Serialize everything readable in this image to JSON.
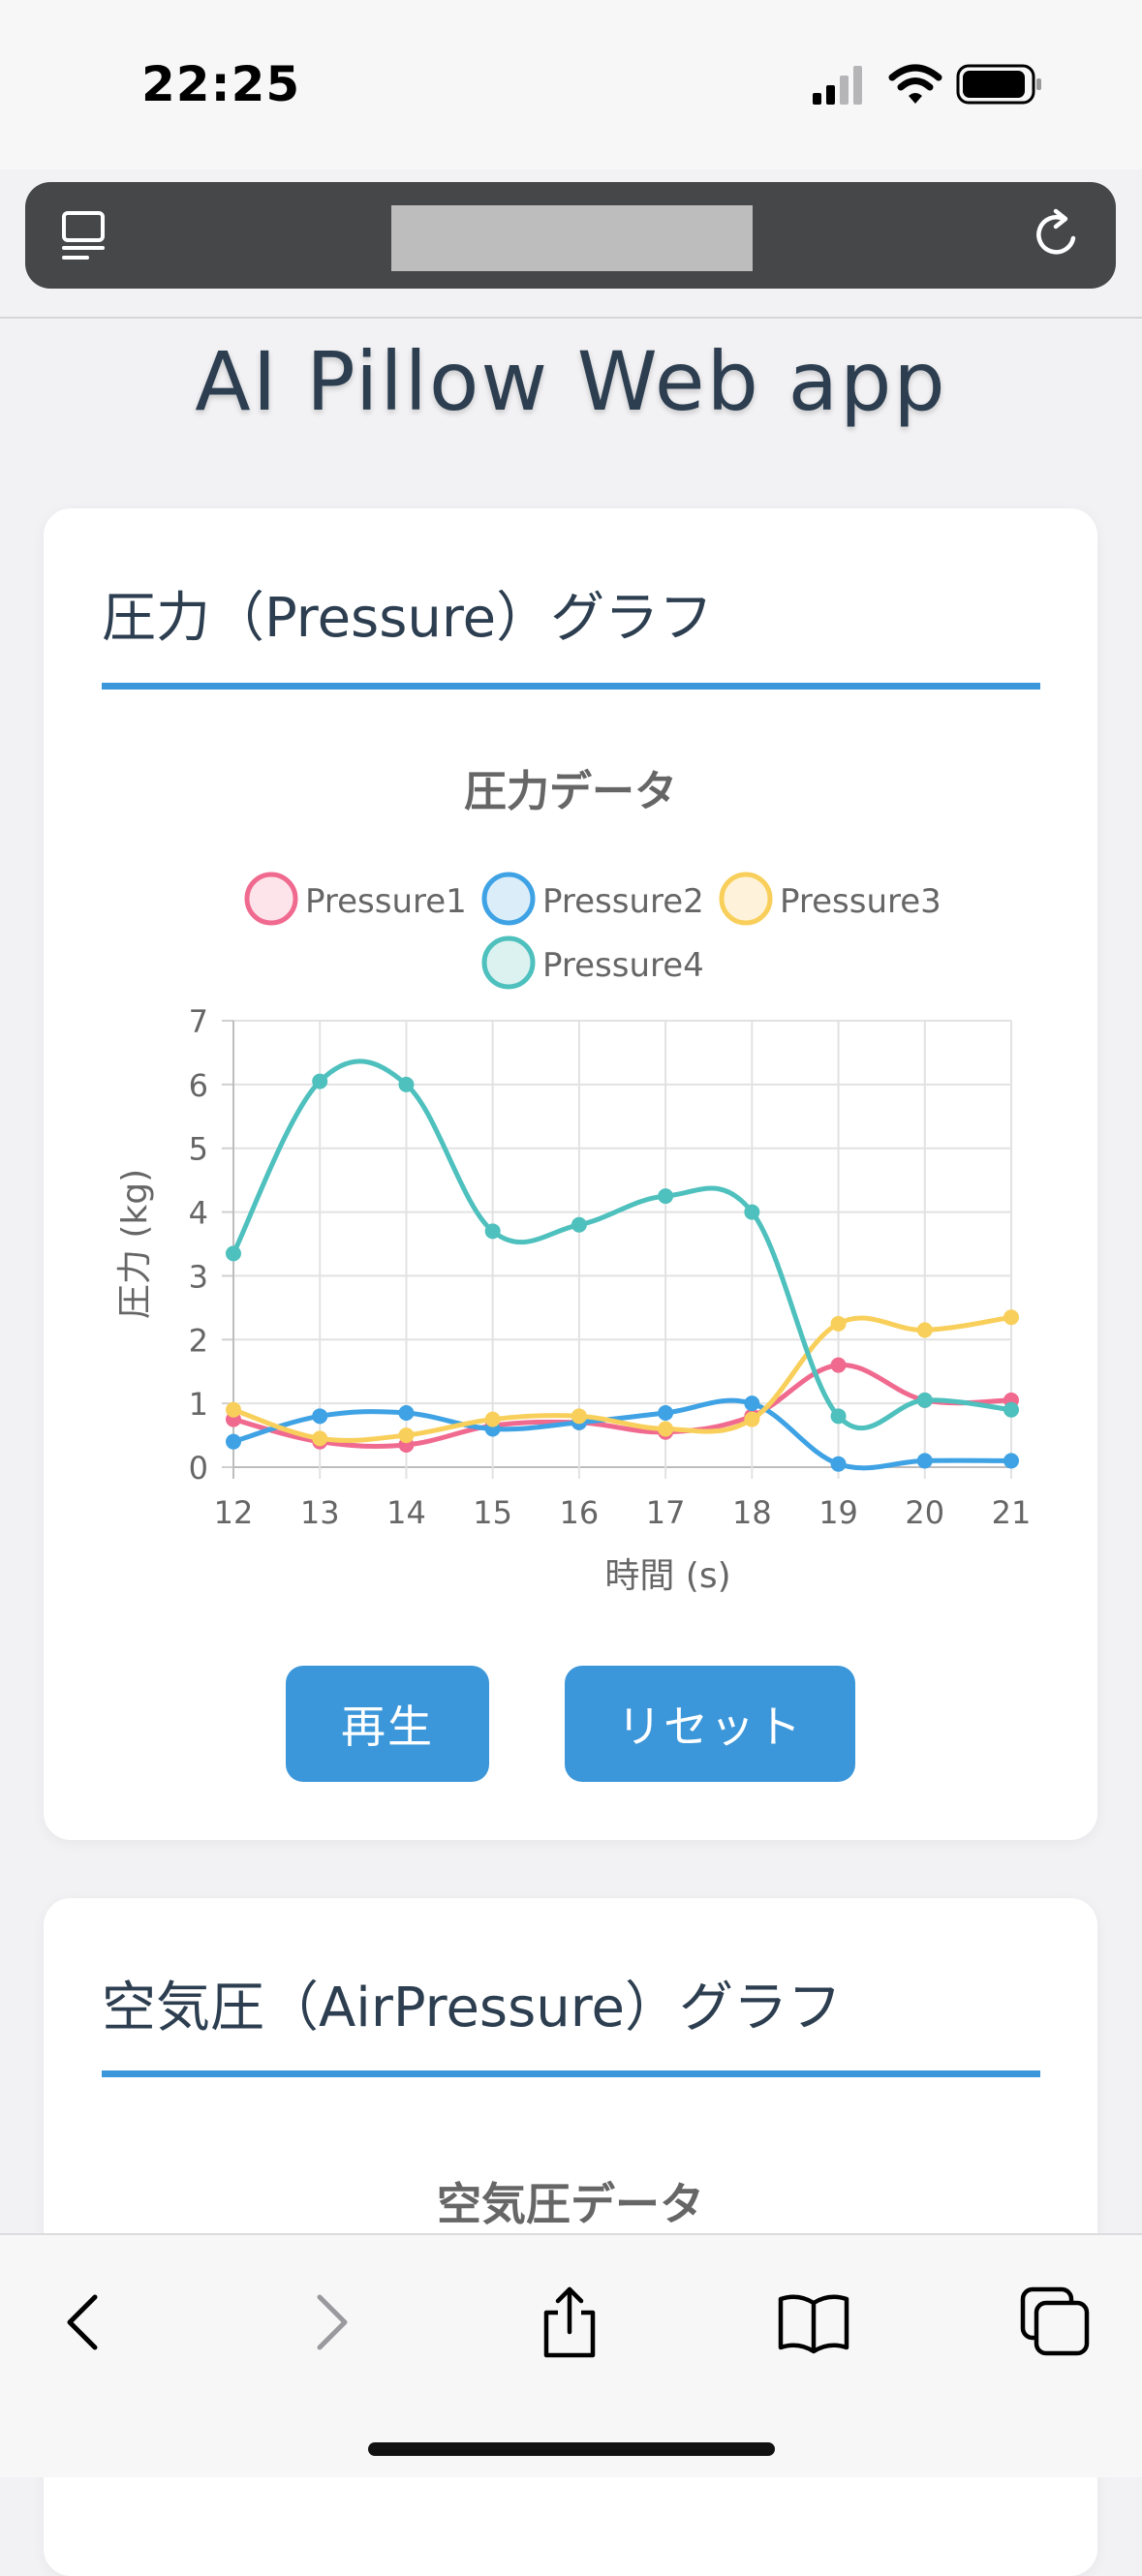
{
  "status_bar": {
    "time": "22:25",
    "icons": [
      "cellular-signal-icon",
      "wifi-icon",
      "battery-icon"
    ]
  },
  "browser": {
    "icons": [
      "tabs-icon",
      "reload-icon"
    ],
    "bottom_icons": [
      "back-icon",
      "forward-icon",
      "share-icon",
      "bookmarks-icon",
      "tabs-overview-icon"
    ]
  },
  "page": {
    "title": "AI Pillow Web app"
  },
  "pressure_card": {
    "title": "圧力（Pressure）グラフ",
    "play_label": "再生",
    "reset_label": "リセット"
  },
  "air_card": {
    "title": "空気圧（AirPressure）グラフ",
    "chart_title": "空気圧データ"
  },
  "colors": {
    "accent": "#3c97da",
    "pressure1": "#f06a8f",
    "pressure2": "#3ea2e4",
    "pressure3": "#f9cf5b",
    "pressure4": "#4ec0bd"
  },
  "chart_data": {
    "type": "line",
    "title": "圧力データ",
    "xlabel": "時間 (s)",
    "ylabel": "圧力 (kg)",
    "x": [
      12,
      13,
      14,
      15,
      16,
      17,
      18,
      19,
      20,
      21
    ],
    "ylim": [
      0,
      7
    ],
    "yticks": [
      0,
      1,
      2,
      3,
      4,
      5,
      6,
      7
    ],
    "grid": true,
    "legend": "top",
    "series": [
      {
        "name": "Pressure1",
        "color": "#f06a8f",
        "fill": "#fde4ea",
        "values": [
          0.75,
          0.4,
          0.35,
          0.65,
          0.7,
          0.55,
          0.8,
          1.6,
          1.05,
          1.05
        ]
      },
      {
        "name": "Pressure2",
        "color": "#3ea2e4",
        "fill": "#dcedfa",
        "values": [
          0.4,
          0.8,
          0.85,
          0.6,
          0.7,
          0.85,
          1.0,
          0.05,
          0.1,
          0.1
        ]
      },
      {
        "name": "Pressure3",
        "color": "#f9cf5b",
        "fill": "#fef3da",
        "values": [
          0.9,
          0.45,
          0.5,
          0.75,
          0.8,
          0.6,
          0.75,
          2.25,
          2.15,
          2.35
        ]
      },
      {
        "name": "Pressure4",
        "color": "#4ec0bd",
        "fill": "#dcf2f1",
        "values": [
          3.35,
          6.05,
          6.0,
          3.7,
          3.8,
          4.25,
          4.0,
          0.8,
          1.05,
          0.9
        ]
      }
    ]
  }
}
